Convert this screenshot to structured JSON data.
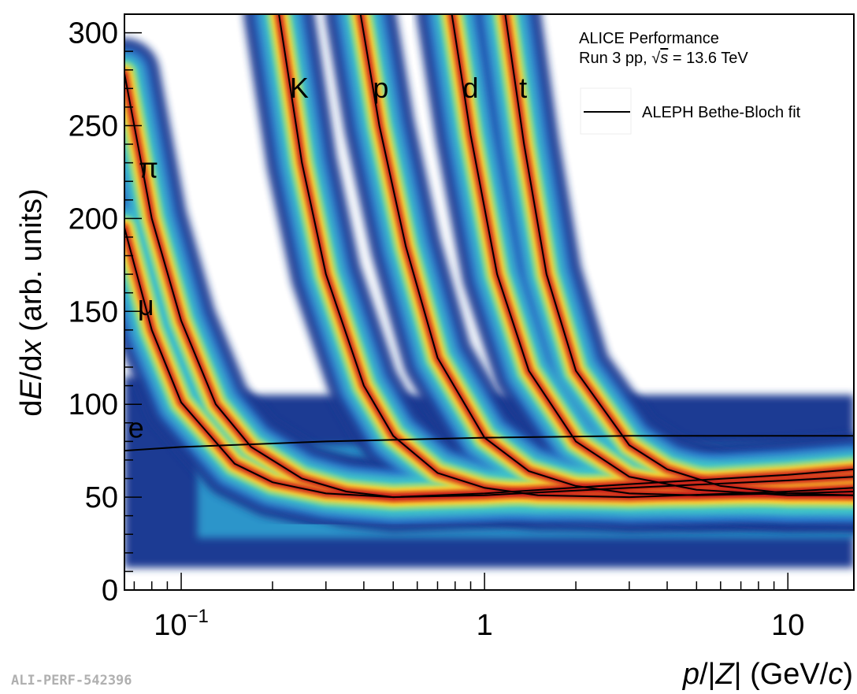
{
  "chart_data": {
    "type": "heatmap",
    "xlabel_parts": [
      "p",
      "/|",
      "Z",
      "| (GeV/",
      "c",
      ")"
    ],
    "ylabel_parts": [
      "d",
      "E",
      "/d",
      "x",
      " (arb. units)"
    ],
    "x_scale": "log",
    "xlim": [
      0.065,
      16.5
    ],
    "ylim": [
      0,
      310
    ],
    "x_ticks": [
      {
        "value": 0.1,
        "base": "10",
        "exp": "−1"
      },
      {
        "value": 1,
        "label": "1"
      },
      {
        "value": 10,
        "label": "10"
      }
    ],
    "y_ticks": [
      0,
      50,
      100,
      150,
      200,
      250,
      300
    ],
    "annotation": {
      "line1": "ALICE Performance",
      "line2_prefix": "Run 3 pp, ",
      "sqrt_symbol": "√",
      "sqrt_var": "s",
      "line2_suffix": " = 13.6 TeV"
    },
    "legend": {
      "entries": [
        {
          "label": "ALEPH Bethe-Bloch fit",
          "marker": "line",
          "color": "#000000"
        }
      ],
      "position": "top-right"
    },
    "figure_id": "ALI-PERF-542396",
    "particle_labels": [
      {
        "text": "e",
        "x": 0.071,
        "y": 82
      },
      {
        "text": "μ",
        "x": 0.0765,
        "y": 148
      },
      {
        "text": "π",
        "x": 0.078,
        "y": 222
      },
      {
        "text": "K",
        "x": 0.245,
        "y": 265
      },
      {
        "text": "p",
        "x": 0.455,
        "y": 265
      },
      {
        "text": "d",
        "x": 0.9,
        "y": 265
      },
      {
        "text": "t",
        "x": 1.34,
        "y": 265
      }
    ],
    "bands": [
      {
        "name": "e",
        "points": [
          [
            0.065,
            75
          ],
          [
            0.1,
            77
          ],
          [
            0.3,
            80
          ],
          [
            1,
            82
          ],
          [
            3,
            83
          ],
          [
            16.5,
            83
          ]
        ]
      },
      {
        "name": "μ",
        "points": [
          [
            0.065,
            195
          ],
          [
            0.08,
            140
          ],
          [
            0.1,
            101
          ],
          [
            0.15,
            68
          ],
          [
            0.2,
            58
          ],
          [
            0.3,
            52
          ],
          [
            0.5,
            50
          ],
          [
            1,
            51
          ],
          [
            3,
            55
          ],
          [
            10,
            59
          ],
          [
            16.5,
            61
          ]
        ]
      },
      {
        "name": "π",
        "points": [
          [
            0.065,
            278
          ],
          [
            0.08,
            200
          ],
          [
            0.1,
            145
          ],
          [
            0.13,
            100
          ],
          [
            0.17,
            77
          ],
          [
            0.25,
            60
          ],
          [
            0.35,
            53
          ],
          [
            0.5,
            50
          ],
          [
            1,
            52
          ],
          [
            3,
            57
          ],
          [
            10,
            62
          ],
          [
            16.5,
            65
          ]
        ]
      },
      {
        "name": "K",
        "points": [
          [
            0.21,
            310
          ],
          [
            0.25,
            230
          ],
          [
            0.3,
            170
          ],
          [
            0.4,
            110
          ],
          [
            0.5,
            83
          ],
          [
            0.7,
            63
          ],
          [
            1,
            55
          ],
          [
            1.5,
            51
          ],
          [
            3,
            50
          ],
          [
            10,
            53
          ],
          [
            16.5,
            55
          ]
        ]
      },
      {
        "name": "p",
        "points": [
          [
            0.39,
            310
          ],
          [
            0.45,
            250
          ],
          [
            0.55,
            185
          ],
          [
            0.7,
            125
          ],
          [
            1,
            82
          ],
          [
            1.4,
            64
          ],
          [
            2,
            56
          ],
          [
            3,
            52
          ],
          [
            5,
            51
          ],
          [
            10,
            52
          ],
          [
            16.5,
            53
          ]
        ]
      },
      {
        "name": "d",
        "points": [
          [
            0.78,
            310
          ],
          [
            0.9,
            245
          ],
          [
            1.1,
            170
          ],
          [
            1.4,
            118
          ],
          [
            2,
            80
          ],
          [
            3,
            61
          ],
          [
            5,
            54
          ],
          [
            10,
            51
          ],
          [
            16.5,
            51
          ]
        ]
      },
      {
        "name": "t",
        "points": [
          [
            1.17,
            310
          ],
          [
            1.35,
            240
          ],
          [
            1.6,
            170
          ],
          [
            2,
            118
          ],
          [
            3,
            78
          ],
          [
            4,
            65
          ],
          [
            6,
            56
          ],
          [
            10,
            52
          ],
          [
            16.5,
            51
          ]
        ]
      }
    ]
  }
}
